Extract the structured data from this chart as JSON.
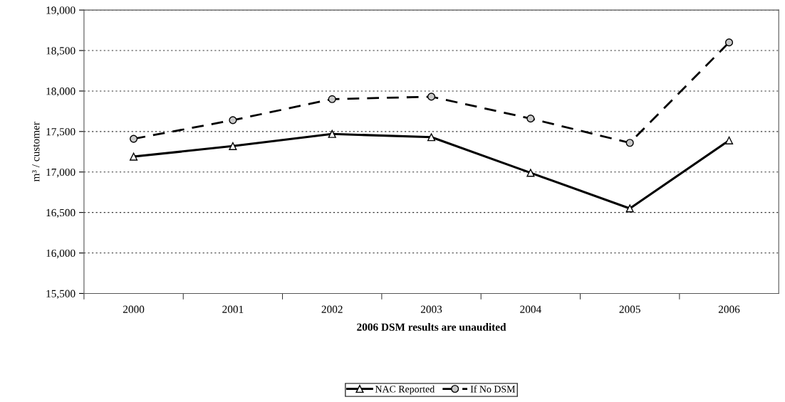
{
  "chart_data": {
    "type": "line",
    "xlabel": "2006 DSM results are unaudited",
    "ylabel": "m³ / customer",
    "categories": [
      "2000",
      "2001",
      "2002",
      "2003",
      "2004",
      "2005",
      "2006"
    ],
    "series": [
      {
        "name": "NAC Reported",
        "color": "#000000",
        "values": [
          17190,
          17320,
          17470,
          17430,
          16990,
          16550,
          17390
        ],
        "marker": "triangle",
        "line_style": "solid"
      },
      {
        "name": "If No DSM",
        "color": "#000000",
        "values": [
          17410,
          17640,
          17900,
          17930,
          17660,
          17360,
          18600
        ],
        "marker": "circle",
        "line_style": "dashed"
      }
    ],
    "ylim": [
      15500,
      19000
    ],
    "yticks": [
      {
        "value": 15500,
        "label": "15,500"
      },
      {
        "value": 16000,
        "label": "16,000"
      },
      {
        "value": 16500,
        "label": "16,500"
      },
      {
        "value": 17000,
        "label": "17,000"
      },
      {
        "value": 17500,
        "label": "17,500"
      },
      {
        "value": 18000,
        "label": "18,000"
      },
      {
        "value": 18500,
        "label": "18,500"
      },
      {
        "value": 19000,
        "label": "19,000"
      }
    ],
    "grid": "y",
    "legend": "bottom"
  }
}
